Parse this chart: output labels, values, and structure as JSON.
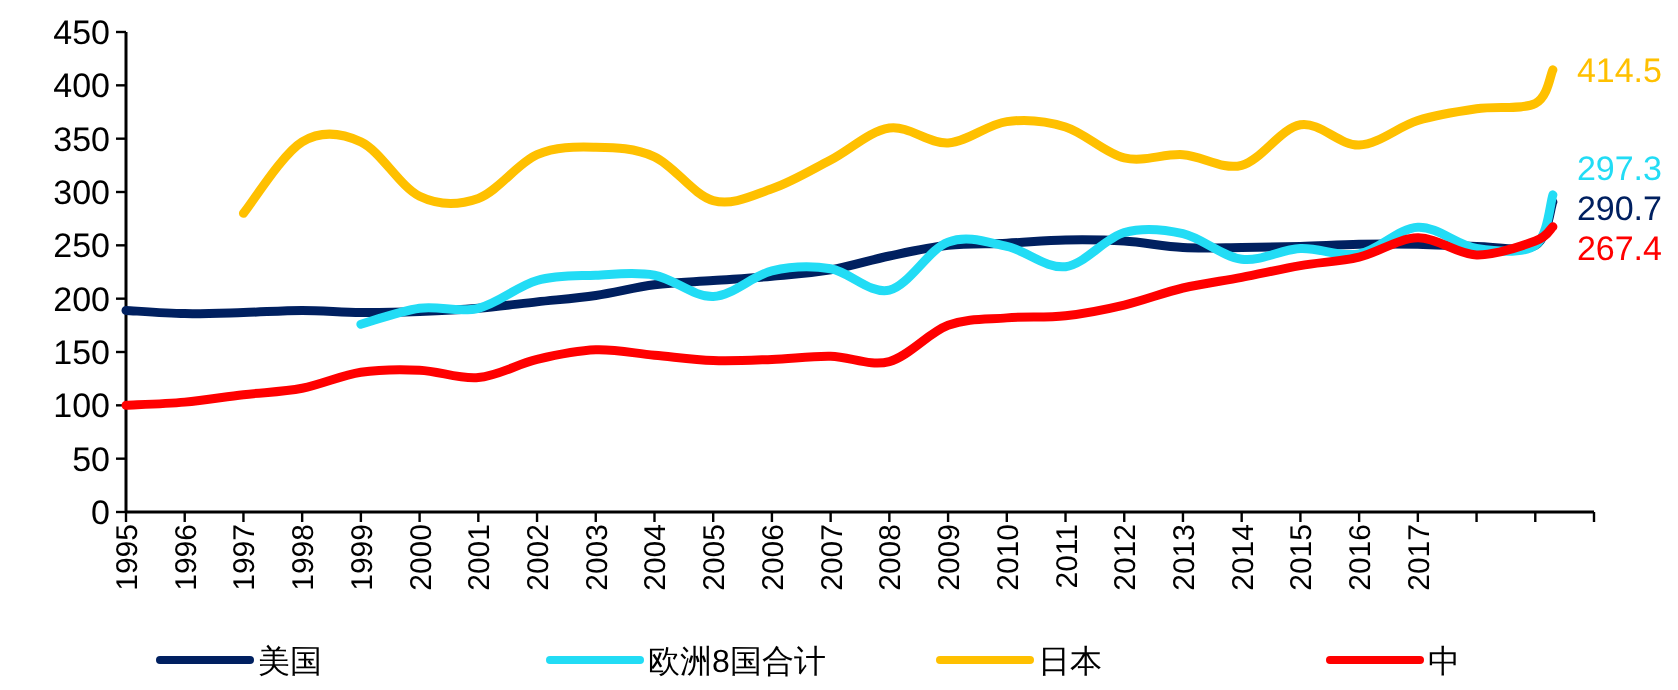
{
  "chart_data": {
    "type": "line",
    "xlim": [
      1995,
      2020
    ],
    "xticks": [
      1995,
      1996,
      1997,
      1998,
      1999,
      2000,
      2001,
      2002,
      2003,
      2004,
      2005,
      2006,
      2007,
      2008,
      2009,
      2010,
      2011,
      2012,
      2013,
      2014,
      2015,
      2016,
      2017,
      {
        "value": 2018,
        "label": null
      },
      {
        "value": 2019,
        "label": null
      },
      {
        "value": 2020,
        "label": null
      }
    ],
    "ylim": [
      0,
      450
    ],
    "yticks": [
      0,
      50,
      100,
      150,
      200,
      250,
      300,
      350,
      400,
      450
    ],
    "grid": false,
    "legend": "bottom",
    "marker": "none",
    "line_style": "solid",
    "series": [
      {
        "name": "美国",
        "color": "#002060",
        "x": [
          1995,
          1996,
          1997,
          1998,
          1999,
          2000,
          2001,
          2002,
          2003,
          2004,
          2005,
          2006,
          2007,
          2008,
          2009,
          2010,
          2011,
          2012,
          2013,
          2014,
          2015,
          2016,
          2017,
          2018,
          2019,
          2019.3
        ],
        "values": [
          189,
          186,
          187,
          189,
          187,
          188,
          191,
          197,
          203,
          213,
          217,
          221,
          227,
          240,
          250,
          252,
          255,
          254,
          248,
          248,
          249,
          251,
          251,
          249,
          250,
          290.7
        ],
        "value_labels": [
          null,
          null,
          null,
          null,
          null,
          null,
          null,
          null,
          null,
          null,
          null,
          null,
          null,
          null,
          null,
          null,
          null,
          null,
          null,
          null,
          null,
          null,
          null,
          null,
          null,
          "290.7"
        ]
      },
      {
        "name": "欧洲8国合计",
        "color": "#22dcf5",
        "x": [
          1999,
          2000,
          2001,
          2002,
          2003,
          2004,
          2005,
          2006,
          2007,
          2008,
          2009,
          2010,
          2011,
          2012,
          2013,
          2014,
          2015,
          2016,
          2017,
          2018,
          2019,
          2019.3
        ],
        "values": [
          176,
          191,
          191,
          217,
          222,
          222,
          202,
          226,
          228,
          208,
          253,
          249,
          230,
          262,
          261,
          237,
          247,
          242,
          267,
          247,
          250,
          297.3
        ],
        "value_labels": [
          null,
          null,
          null,
          null,
          null,
          null,
          null,
          null,
          null,
          null,
          null,
          null,
          null,
          null,
          null,
          null,
          null,
          null,
          null,
          null,
          null,
          "297.3"
        ]
      },
      {
        "name": "日本",
        "color": "#ffc000",
        "x": [
          1997,
          1998,
          1999,
          2000,
          2001,
          2002,
          2003,
          2004,
          2005,
          2006,
          2007,
          2008,
          2009,
          2010,
          2011,
          2012,
          2013,
          2014,
          2015,
          2016,
          2017,
          2018,
          2019,
          2019.3
        ],
        "values": [
          280,
          347,
          347,
          296,
          294,
          335,
          342,
          333,
          292,
          303,
          330,
          360,
          346,
          366,
          361,
          332,
          335,
          325,
          363,
          344,
          367,
          378,
          383,
          414.5
        ],
        "value_labels": [
          null,
          null,
          null,
          null,
          null,
          null,
          null,
          null,
          null,
          null,
          null,
          null,
          null,
          null,
          null,
          null,
          null,
          null,
          null,
          null,
          null,
          null,
          null,
          "414.5"
        ]
      },
      {
        "name": "中",
        "color": "#ff0000",
        "x": [
          1995,
          1996,
          1997,
          1998,
          1999,
          2000,
          2001,
          2002,
          2003,
          2004,
          2005,
          2006,
          2007,
          2008,
          2009,
          2010,
          2011,
          2012,
          2013,
          2014,
          2015,
          2016,
          2017,
          2018,
          2019,
          2019.3
        ],
        "values": [
          100,
          103,
          110,
          116,
          131,
          133,
          126,
          143,
          152,
          147,
          142,
          143,
          146,
          141,
          175,
          182,
          184,
          194,
          210,
          220,
          231,
          239,
          257,
          241,
          254,
          267.4
        ],
        "value_labels": [
          null,
          null,
          null,
          null,
          null,
          null,
          null,
          null,
          null,
          null,
          null,
          null,
          null,
          null,
          null,
          null,
          null,
          null,
          null,
          null,
          null,
          null,
          null,
          null,
          null,
          "267.4"
        ]
      }
    ]
  }
}
